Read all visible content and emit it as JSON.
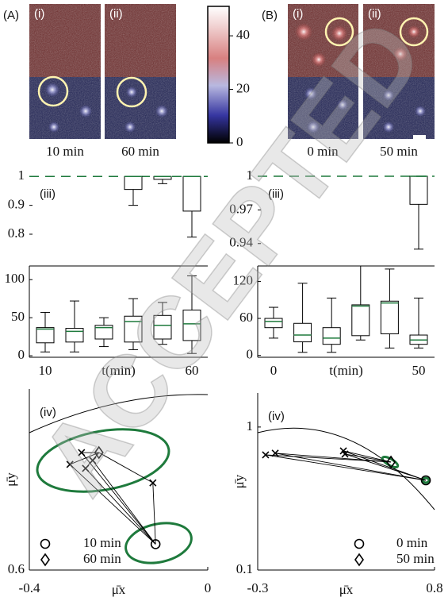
{
  "panel_labels": [
    "(A)",
    "(B)"
  ],
  "images": [
    {
      "label": "(i)",
      "time": "10 min"
    },
    {
      "label": "(ii)",
      "time": "60 min"
    },
    {
      "label": "(i)",
      "time": "0 min"
    },
    {
      "label": "(ii)",
      "time": "50 min"
    }
  ],
  "colorbar": {
    "ylim": [
      0,
      51
    ],
    "yticks": [
      0,
      20,
      40
    ]
  },
  "watermark": "ACCEPTED",
  "chart_data": [
    {
      "type": "box",
      "label": "(iii)",
      "ylim": [
        0.69,
        1.02
      ],
      "yticks": [
        0.8,
        0.9,
        1
      ],
      "reference": 1,
      "reference_color": "#1e7a3c",
      "median_color": "#1e7a3c",
      "boxes": [
        null,
        null,
        null,
        {
          "min": 0.9,
          "q1": 0.955,
          "median": 1,
          "q3": 1,
          "max": 1
        },
        {
          "min": 0.975,
          "q1": 0.99,
          "median": 1,
          "q3": 1,
          "max": 1
        },
        {
          "min": 0.79,
          "q1": 0.88,
          "median": 1,
          "q3": 1,
          "max": 1
        }
      ]
    },
    {
      "type": "box",
      "ylim": [
        -2,
        118
      ],
      "yticks": [
        0,
        50,
        100
      ],
      "median_color": "#1e7a3c",
      "categories": [
        "10",
        null,
        null,
        null,
        null,
        "60"
      ],
      "x_label": "t(min)",
      "boxes": [
        {
          "min": 5,
          "q1": 17,
          "median": 35,
          "q3": 37,
          "max": 57
        },
        {
          "min": 5,
          "q1": 18,
          "median": 32,
          "q3": 36,
          "max": 72
        },
        {
          "min": 12,
          "q1": 22,
          "median": 37,
          "q3": 40,
          "max": 50
        },
        {
          "min": 8,
          "q1": 18,
          "median": 45,
          "q3": 52,
          "max": 75
        },
        {
          "min": 15,
          "q1": 22,
          "median": 40,
          "q3": 53,
          "max": 70
        },
        {
          "min": 3,
          "q1": 20,
          "median": 42,
          "q3": 60,
          "max": 105
        }
      ]
    },
    {
      "type": "box",
      "label": "(iii)",
      "ylim": [
        0.92,
        1.005
      ],
      "yticks": [
        0.94,
        0.97,
        1
      ],
      "reference": 1,
      "reference_color": "#1e7a3c",
      "median_color": "#1e7a3c",
      "boxes": [
        null,
        null,
        null,
        null,
        null,
        {
          "min": 0.935,
          "q1": 0.975,
          "median": 1,
          "q3": 1,
          "max": 1
        }
      ]
    },
    {
      "type": "box",
      "ylim": [
        -3,
        145
      ],
      "yticks": [
        0,
        60,
        120
      ],
      "median_color": "#1e7a3c",
      "categories": [
        "0",
        null,
        null,
        null,
        null,
        "50"
      ],
      "x_label": "t(min)",
      "boxes": [
        {
          "min": 28,
          "q1": 45,
          "median": 55,
          "q3": 60,
          "max": 78
        },
        {
          "min": 5,
          "q1": 22,
          "median": 33,
          "q3": 52,
          "max": 117
        },
        {
          "min": 5,
          "q1": 18,
          "median": 28,
          "q3": 45,
          "max": 93
        },
        {
          "min": 25,
          "q1": 32,
          "median": 80,
          "q3": 82,
          "max": 145
        },
        {
          "min": 12,
          "q1": 35,
          "median": 85,
          "q3": 88,
          "max": 140
        },
        {
          "min": 12,
          "q1": 18,
          "median": 25,
          "q3": 33,
          "max": 93
        }
      ]
    },
    {
      "type": "scatter",
      "label": "(iv)",
      "xlim": [
        -0.4,
        0
      ],
      "xticks": [
        -0.4,
        0
      ],
      "ylim": [
        0.6,
        1.013
      ],
      "yticks": [
        0.6
      ],
      "x_label": "μ̄x",
      "y_label": "μ̄y",
      "legend": "lower left",
      "series": [
        {
          "name": "10 min",
          "marker": "circle",
          "x": [
            -0.117
          ],
          "y": [
            0.659
          ]
        },
        {
          "name": "60 min",
          "marker": "diamond",
          "x": [
            -0.244
          ],
          "y": [
            0.868
          ]
        },
        {
          "marker": "cross",
          "x": [
            -0.309,
            -0.283,
            -0.274,
            -0.258,
            -0.123
          ],
          "y": [
            0.841,
            0.868,
            0.832,
            0.85,
            0.799
          ]
        }
      ]
    },
    {
      "type": "scatter",
      "label": "(iv)",
      "xlim": [
        -0.3,
        0.8
      ],
      "xticks": [
        -0.3,
        0.8
      ],
      "ylim": [
        0.1,
        1.73
      ],
      "yticks": [
        0.1,
        1
      ],
      "y_scale": "log",
      "x_label": "μ̄x",
      "y_label": "μ̄y",
      "legend": "lower right",
      "series": [
        {
          "name": "0 min",
          "marker": "circle",
          "x": [
            0.746
          ],
          "y": [
            0.424
          ]
        },
        {
          "name": "50 min",
          "marker": "diamond",
          "x": [
            0.529
          ],
          "y": [
            0.569
          ]
        },
        {
          "marker": "cross",
          "x": [
            -0.251,
            -0.191,
            0.233,
            0.243
          ],
          "y": [
            0.639,
            0.656,
            0.681,
            0.647
          ]
        }
      ]
    }
  ]
}
